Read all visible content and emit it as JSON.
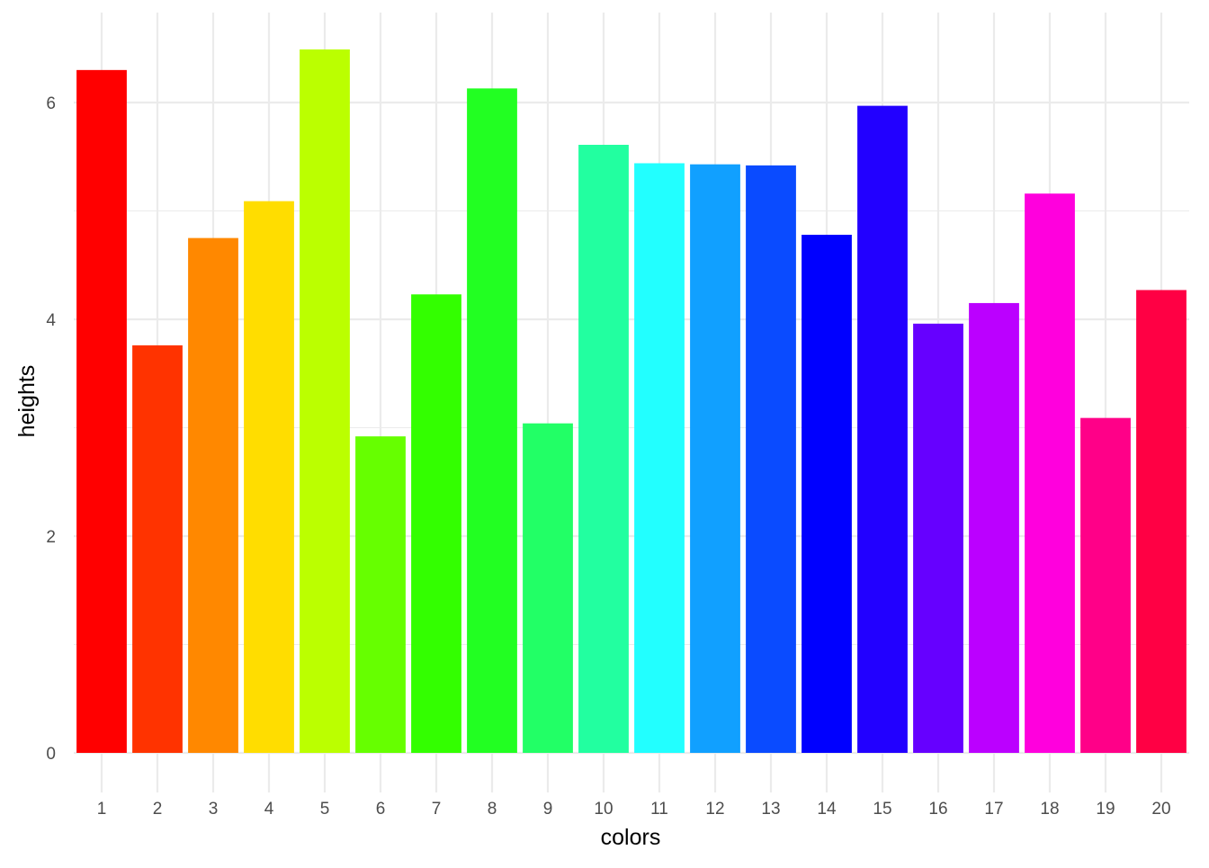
{
  "chart_data": {
    "type": "bar",
    "title": "",
    "xlabel": "colors",
    "ylabel": "heights",
    "categories": [
      "1",
      "2",
      "3",
      "4",
      "5",
      "6",
      "7",
      "8",
      "9",
      "10",
      "11",
      "12",
      "13",
      "14",
      "15",
      "16",
      "17",
      "18",
      "19",
      "20"
    ],
    "values": [
      6.3,
      3.76,
      4.75,
      5.09,
      6.49,
      2.92,
      4.23,
      6.13,
      3.04,
      5.61,
      5.44,
      5.43,
      5.42,
      4.78,
      5.97,
      3.96,
      4.15,
      5.16,
      3.09,
      4.27
    ],
    "bar_colors": [
      "#FF0000",
      "#FF3300",
      "#FF8800",
      "#FFDD00",
      "#BBFF00",
      "#66FF00",
      "#33FF00",
      "#22FF22",
      "#22FF66",
      "#22FFA0",
      "#22FFFF",
      "#11A0FF",
      "#0A4BFF",
      "#0000FF",
      "#2200FF",
      "#6600FF",
      "#BB00FF",
      "#FF00DD",
      "#FF0088",
      "#FF0044"
    ],
    "y_ticks": [
      0,
      2,
      4,
      6
    ],
    "ylim": [
      0,
      6.8
    ],
    "grid": true,
    "legend": "none"
  }
}
